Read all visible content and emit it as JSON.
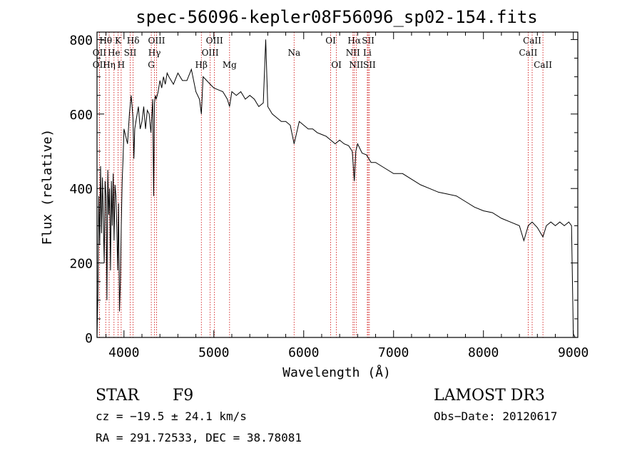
{
  "chart_data": {
    "type": "line",
    "title": "spec-56096-kepler08F56096_sp02-154.fits",
    "xlabel": "Wavelength (Å)",
    "ylabel": "Flux (relative)",
    "xlim": [
      3700,
      9050
    ],
    "ylim": [
      0,
      820
    ],
    "x_ticks": [
      4000,
      5000,
      6000,
      7000,
      8000,
      9000
    ],
    "y_ticks": [
      0,
      200,
      400,
      600,
      800
    ],
    "color": "#000000",
    "line_color": "#cc0000",
    "series": [
      {
        "name": "flux",
        "x": [
          3700,
          3710,
          3720,
          3730,
          3740,
          3750,
          3760,
          3770,
          3780,
          3790,
          3800,
          3810,
          3820,
          3830,
          3840,
          3850,
          3860,
          3870,
          3880,
          3890,
          3900,
          3910,
          3920,
          3930,
          3940,
          3950,
          3960,
          3970,
          3980,
          3990,
          4000,
          4020,
          4040,
          4060,
          4080,
          4100,
          4110,
          4120,
          4140,
          4160,
          4180,
          4200,
          4220,
          4240,
          4260,
          4280,
          4300,
          4320,
          4330,
          4340,
          4350,
          4360,
          4380,
          4400,
          4420,
          4440,
          4460,
          4480,
          4500,
          4550,
          4600,
          4650,
          4700,
          4750,
          4800,
          4840,
          4861,
          4880,
          4920,
          4960,
          5000,
          5050,
          5100,
          5150,
          5175,
          5200,
          5250,
          5300,
          5350,
          5400,
          5450,
          5500,
          5550,
          5577,
          5600,
          5650,
          5700,
          5750,
          5800,
          5850,
          5893,
          5950,
          6000,
          6050,
          6100,
          6150,
          6200,
          6250,
          6300,
          6350,
          6400,
          6450,
          6500,
          6540,
          6563,
          6580,
          6600,
          6650,
          6700,
          6750,
          6800,
          6900,
          7000,
          7100,
          7200,
          7300,
          7400,
          7500,
          7600,
          7700,
          7800,
          7900,
          8000,
          8100,
          8200,
          8300,
          8400,
          8450,
          8498,
          8542,
          8600,
          8662,
          8700,
          8750,
          8800,
          8850,
          8900,
          8950,
          8980,
          9000,
          9020
        ],
        "y": [
          0,
          120,
          380,
          250,
          460,
          280,
          430,
          320,
          200,
          420,
          380,
          100,
          450,
          330,
          400,
          180,
          420,
          300,
          440,
          260,
          410,
          380,
          300,
          180,
          360,
          70,
          150,
          300,
          420,
          480,
          560,
          540,
          520,
          600,
          650,
          590,
          480,
          560,
          590,
          620,
          560,
          580,
          620,
          560,
          610,
          600,
          550,
          640,
          380,
          630,
          650,
          640,
          660,
          690,
          670,
          700,
          680,
          710,
          700,
          680,
          710,
          690,
          690,
          720,
          660,
          640,
          600,
          700,
          690,
          680,
          670,
          665,
          660,
          640,
          620,
          660,
          650,
          660,
          640,
          650,
          640,
          620,
          630,
          800,
          620,
          600,
          590,
          580,
          580,
          570,
          520,
          580,
          570,
          560,
          560,
          550,
          545,
          540,
          530,
          520,
          530,
          520,
          515,
          500,
          420,
          500,
          520,
          495,
          490,
          470,
          470,
          455,
          440,
          440,
          425,
          410,
          400,
          390,
          385,
          380,
          365,
          350,
          340,
          335,
          320,
          310,
          300,
          260,
          300,
          310,
          295,
          270,
          300,
          310,
          300,
          310,
          300,
          310,
          300,
          10,
          0
        ]
      }
    ],
    "spectral_lines": [
      {
        "label": "Hθ",
        "wavelength": 3797,
        "row": 1
      },
      {
        "label": "OII",
        "wavelength": 3727,
        "row": 2
      },
      {
        "label": "OII",
        "wavelength": 3727,
        "row": 3
      },
      {
        "label": "K",
        "wavelength": 3934,
        "row": 1
      },
      {
        "label": "He",
        "wavelength": 3889,
        "row": 2
      },
      {
        "label": "Hη",
        "wavelength": 3835,
        "row": 3
      },
      {
        "label": "Hδ",
        "wavelength": 4102,
        "row": 1
      },
      {
        "label": "SII",
        "wavelength": 4069,
        "row": 2
      },
      {
        "label": "H",
        "wavelength": 3969,
        "row": 3
      },
      {
        "label": "OIII",
        "wavelength": 4363,
        "row": 1
      },
      {
        "label": "Hγ",
        "wavelength": 4340,
        "row": 2
      },
      {
        "label": "G",
        "wavelength": 4304,
        "row": 3
      },
      {
        "label": "OIII",
        "wavelength": 5007,
        "row": 1
      },
      {
        "label": "OIII",
        "wavelength": 4959,
        "row": 2
      },
      {
        "label": "Hβ",
        "wavelength": 4861,
        "row": 3
      },
      {
        "label": "Mg",
        "wavelength": 5175,
        "row": 3
      },
      {
        "label": "Na",
        "wavelength": 5893,
        "row": 2
      },
      {
        "label": "OI",
        "wavelength": 6300,
        "row": 1
      },
      {
        "label": "OI",
        "wavelength": 6364,
        "row": 3
      },
      {
        "label": "Hα",
        "wavelength": 6563,
        "row": 1
      },
      {
        "label": "SII",
        "wavelength": 6717,
        "row": 1
      },
      {
        "label": "NII",
        "wavelength": 6548,
        "row": 2
      },
      {
        "label": "Li",
        "wavelength": 6708,
        "row": 2
      },
      {
        "label": "NII",
        "wavelength": 6584,
        "row": 3
      },
      {
        "label": "SII",
        "wavelength": 6731,
        "row": 3
      },
      {
        "label": "CaII",
        "wavelength": 8542,
        "row": 1
      },
      {
        "label": "CaII",
        "wavelength": 8498,
        "row": 2
      },
      {
        "label": "CaII",
        "wavelength": 8662,
        "row": 3
      }
    ]
  },
  "info": {
    "object_class": "STAR",
    "subclass": "F9",
    "survey": "LAMOST DR3",
    "redshift_text": "cz = −19.5 ± 24.1 km/s",
    "obs_date_text": "Obs−Date: 20120617",
    "coords_text": "RA = 291.72533, DEC =  38.78081"
  }
}
